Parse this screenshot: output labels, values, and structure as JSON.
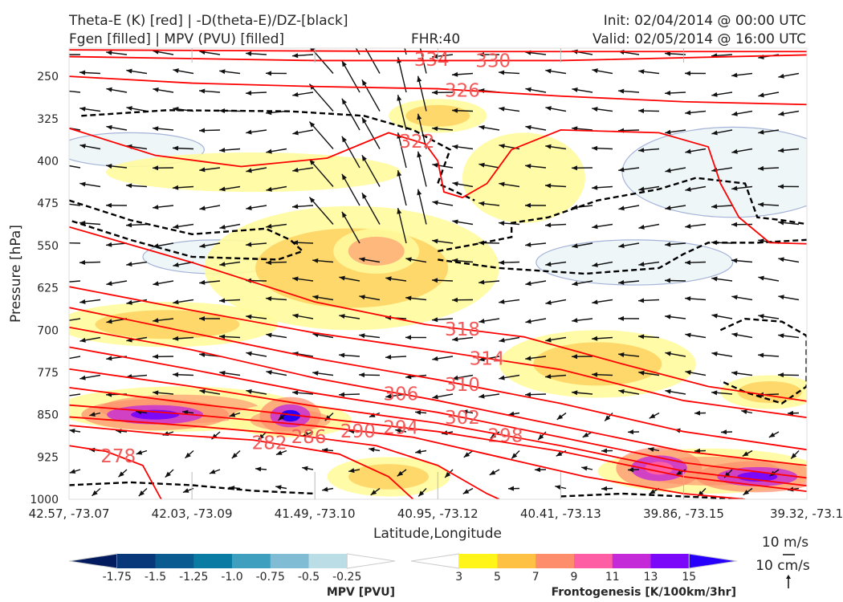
{
  "header": {
    "title_line1": "Theta-E (K) [red] | -D(theta-E)/DZ-[black]",
    "title_line2": "Fgen [filled] | MPV (PVU) [filled]",
    "fhr": "FHR:40",
    "init": "Init: 02/04/2014 @ 00:00 UTC",
    "valid": "Valid: 02/05/2014 @ 16:00 UTC"
  },
  "chart_data": {
    "type": "line",
    "xlabel": "Latitude,Longitude",
    "ylabel": "Pressure [hPa]",
    "x_ticks": [
      "42.57, -73.07",
      "42.03, -73.09",
      "41.49, -73.10",
      "40.95, -73.12",
      "40.41, -73.13",
      "39.86, -73.15",
      "39.32, -73.1"
    ],
    "y_ticks": [
      250,
      325,
      400,
      475,
      550,
      625,
      700,
      775,
      850,
      925,
      1000
    ],
    "ylim": [
      1000,
      200
    ],
    "theta_e_color": "#ff0000",
    "theta_e_contours": [
      {
        "level": "334",
        "label_at": [
          2.95,
          203
        ],
        "points": [
          [
            0,
            203
          ],
          [
            3,
            206
          ],
          [
            6,
            206
          ]
        ]
      },
      {
        "level": "330",
        "label_at": [
          2.95,
          218
        ],
        "points": [
          [
            0,
            215
          ],
          [
            2,
            222
          ],
          [
            4,
            222
          ],
          [
            6,
            212
          ]
        ]
      },
      {
        "level": "326",
        "label_at": [
          3.2,
          270
        ],
        "points": [
          [
            0,
            250
          ],
          [
            1,
            262
          ],
          [
            2,
            268
          ],
          [
            3,
            272
          ],
          [
            4,
            285
          ],
          [
            5,
            295
          ],
          [
            6,
            300
          ]
        ]
      },
      {
        "level": "322",
        "label_at": [
          2.83,
          385
        ],
        "points": [
          [
            0,
            342
          ],
          [
            0.7,
            390
          ],
          [
            1.4,
            410
          ],
          [
            2.1,
            395
          ],
          [
            2.6,
            350
          ],
          [
            2.9,
            370
          ],
          [
            3.0,
            400
          ],
          [
            3.05,
            455
          ],
          [
            3.2,
            465
          ],
          [
            3.4,
            440
          ],
          [
            3.6,
            380
          ],
          [
            4.0,
            345
          ],
          [
            4.8,
            350
          ],
          [
            5.2,
            375
          ],
          [
            5.3,
            440
          ],
          [
            5.45,
            500
          ],
          [
            5.7,
            545
          ],
          [
            6,
            547
          ]
        ]
      },
      {
        "level": "318",
        "label_at": [
          3.2,
          693
        ],
        "points": [
          [
            0,
            517
          ],
          [
            1,
            580
          ],
          [
            2,
            650
          ],
          [
            2.9,
            690
          ],
          [
            3.7,
            712
          ],
          [
            4.5,
            760
          ],
          [
            5.2,
            800
          ],
          [
            6,
            826
          ]
        ]
      },
      {
        "level": "314",
        "label_at": [
          3.4,
          748
        ],
        "points": [
          [
            0,
            623
          ],
          [
            1,
            665
          ],
          [
            2,
            705
          ],
          [
            3.1,
            740
          ],
          [
            4,
            770
          ],
          [
            5,
            825
          ],
          [
            6,
            855
          ]
        ]
      },
      {
        "level": "310",
        "label_at": [
          3.2,
          790
        ],
        "points": [
          [
            0,
            660
          ],
          [
            1,
            705
          ],
          [
            2,
            750
          ],
          [
            3,
            788
          ],
          [
            4,
            830
          ],
          [
            5,
            880
          ],
          [
            6,
            912
          ]
        ]
      },
      {
        "level": "306",
        "label_at": [
          2.95,
          826
        ],
        "points": [
          [
            0,
            695
          ],
          [
            1,
            735
          ],
          [
            2,
            785
          ],
          [
            3,
            825
          ],
          [
            4,
            870
          ],
          [
            5,
            915
          ],
          [
            6,
            940
          ]
        ]
      },
      {
        "level": "302",
        "label_at": [
          3.2,
          848
        ],
        "points": [
          [
            0,
            730
          ],
          [
            1,
            770
          ],
          [
            2,
            812
          ],
          [
            3,
            846
          ],
          [
            4,
            890
          ],
          [
            5,
            935
          ],
          [
            6,
            962
          ]
        ]
      },
      {
        "level": "298",
        "label_at": [
          3.3,
          869
        ],
        "points": [
          [
            0,
            769
          ],
          [
            1,
            800
          ],
          [
            2,
            835
          ],
          [
            3,
            865
          ],
          [
            4,
            905
          ],
          [
            5,
            950
          ],
          [
            6,
            976
          ]
        ]
      },
      {
        "level": "294",
        "label_at": [
          2.95,
          883
        ],
        "points": [
          [
            0,
            802
          ],
          [
            1,
            830
          ],
          [
            2,
            855
          ],
          [
            3,
            880
          ],
          [
            4,
            915
          ],
          [
            5,
            960
          ],
          [
            6,
            986
          ]
        ]
      },
      {
        "level": "290",
        "label_at": [
          2.6,
          890
        ],
        "points": [
          [
            0,
            833
          ],
          [
            1,
            850
          ],
          [
            2,
            870
          ],
          [
            2.8,
            890
          ],
          [
            3.5,
            925
          ],
          [
            4.2,
            960
          ],
          [
            5,
            990
          ],
          [
            5.5,
            1000
          ]
        ]
      },
      {
        "level": "286",
        "label_at": [
          2.2,
          891
        ],
        "points": [
          [
            0,
            854
          ],
          [
            1,
            870
          ],
          [
            1.8,
            885
          ],
          [
            2.5,
            905
          ],
          [
            3.0,
            940
          ],
          [
            3.4,
            990
          ],
          [
            3.5,
            1000
          ]
        ]
      },
      {
        "level": "282",
        "label_at": [
          1.63,
          895
        ],
        "points": [
          [
            0,
            869
          ],
          [
            0.8,
            885
          ],
          [
            1.5,
            895
          ],
          [
            2.2,
            920
          ],
          [
            2.6,
            960
          ],
          [
            2.8,
            1000
          ]
        ]
      },
      {
        "level": "278",
        "label_at": [
          0.4,
          924
        ],
        "points": [
          [
            0,
            905
          ],
          [
            0.3,
            915
          ],
          [
            0.6,
            940
          ],
          [
            0.75,
            1000
          ]
        ]
      }
    ],
    "dtheta_dz_dashed": [
      [
        [
          0,
          470
        ],
        [
          0.5,
          505
        ],
        [
          1,
          530
        ],
        [
          1.3,
          525
        ],
        [
          1.6,
          520
        ],
        [
          1.8,
          540
        ],
        [
          1.9,
          560
        ],
        [
          1.7,
          575
        ],
        [
          1,
          570
        ],
        [
          0.5,
          540
        ],
        [
          0,
          505
        ]
      ],
      [
        [
          0.1,
          320
        ],
        [
          0.8,
          310
        ],
        [
          1.8,
          312
        ],
        [
          2.4,
          320
        ],
        [
          2.8,
          345
        ],
        [
          3.1,
          380
        ],
        [
          3.0,
          440
        ],
        [
          3.3,
          470
        ]
      ],
      [
        [
          3.0,
          560
        ],
        [
          3.3,
          548
        ],
        [
          3.6,
          535
        ],
        [
          3.6,
          510
        ],
        [
          3.9,
          500
        ],
        [
          4.3,
          470
        ],
        [
          4.8,
          450
        ],
        [
          5.1,
          430
        ],
        [
          5.5,
          440
        ],
        [
          5.6,
          500
        ],
        [
          5.8,
          505
        ],
        [
          6,
          512
        ]
      ],
      [
        [
          3.0,
          575
        ],
        [
          3.5,
          590
        ],
        [
          4.2,
          600
        ],
        [
          4.8,
          590
        ],
        [
          5.0,
          565
        ],
        [
          5.2,
          545
        ],
        [
          5.6,
          545
        ],
        [
          6,
          540
        ]
      ],
      [
        [
          5.3,
          700
        ],
        [
          5.5,
          680
        ],
        [
          5.8,
          685
        ],
        [
          6,
          710
        ],
        [
          6,
          800
        ],
        [
          5.8,
          830
        ],
        [
          5.5,
          810
        ],
        [
          5.3,
          790
        ]
      ],
      [
        [
          0,
          975
        ],
        [
          0.5,
          970
        ],
        [
          1,
          975
        ],
        [
          1.5,
          985
        ],
        [
          2,
          990
        ]
      ],
      [
        [
          4,
          995
        ],
        [
          4.5,
          990
        ],
        [
          5,
          995
        ],
        [
          5.5,
          1000
        ]
      ]
    ],
    "fgen_blobs": [
      {
        "x": 2.3,
        "p": 590,
        "rx": 1.2,
        "rp": 110,
        "value": 5
      },
      {
        "x": 2.5,
        "p": 560,
        "rx": 0.35,
        "rp": 40,
        "value": 7
      },
      {
        "x": 0.8,
        "p": 690,
        "rx": 0.9,
        "rp": 40,
        "value": 5
      },
      {
        "x": 1.5,
        "p": 420,
        "rx": 1.2,
        "rp": 35,
        "value": 3
      },
      {
        "x": 3.7,
        "p": 430,
        "rx": 0.5,
        "rp": 80,
        "value": 3
      },
      {
        "x": 3.0,
        "p": 320,
        "rx": 0.4,
        "rp": 30,
        "value": 5
      },
      {
        "x": 4.3,
        "p": 760,
        "rx": 0.8,
        "rp": 60,
        "value": 5
      },
      {
        "x": 5.7,
        "p": 810,
        "rx": 0.4,
        "rp": 30,
        "value": 5
      },
      {
        "x": 0.9,
        "p": 840,
        "rx": 1.0,
        "rp": 40,
        "value": 7
      },
      {
        "x": 1.8,
        "p": 860,
        "rx": 0.5,
        "rp": 30,
        "value": 7
      },
      {
        "x": 5.2,
        "p": 950,
        "rx": 0.9,
        "rp": 40,
        "value": 7
      },
      {
        "x": 2.6,
        "p": 960,
        "rx": 0.5,
        "rp": 35,
        "value": 5
      }
    ],
    "fgen_cores": [
      {
        "x": 0.7,
        "p": 850,
        "rx": 0.6,
        "rp": 15,
        "value": 13
      },
      {
        "x": 1.8,
        "p": 852,
        "rx": 0.25,
        "rp": 18,
        "value": 15
      },
      {
        "x": 5.6,
        "p": 960,
        "rx": 0.5,
        "rp": 15,
        "value": 13
      },
      {
        "x": 4.8,
        "p": 945,
        "rx": 0.35,
        "rp": 20,
        "value": 9
      }
    ],
    "mpv_blobs": [
      {
        "x": 0.5,
        "p": 380,
        "rx": 0.6,
        "rp": 30,
        "value": -0.25
      },
      {
        "x": 5.4,
        "p": 420,
        "rx": 0.9,
        "rp": 80,
        "value": -0.25
      },
      {
        "x": 4.6,
        "p": 580,
        "rx": 0.8,
        "rp": 40,
        "value": -0.25
      },
      {
        "x": 1.2,
        "p": 570,
        "rx": 0.6,
        "rp": 30,
        "value": -0.25
      }
    ]
  },
  "colorbars": {
    "mpv": {
      "label": "MPV [PVU]",
      "ticks": [
        "-1.75",
        "-1.5",
        "-1.25",
        "-1.0",
        "-0.75",
        "-0.5",
        "-0.25"
      ],
      "colors": [
        "#021b5e",
        "#08387a",
        "#0a5b8f",
        "#0a7ba3",
        "#3ea0be",
        "#80bcd4",
        "#bbdde6",
        "#ffffff"
      ]
    },
    "fgen": {
      "label": "Frontogenesis [K/100km/3hr]",
      "ticks": [
        "3",
        "5",
        "7",
        "9",
        "11",
        "13",
        "15"
      ],
      "colors": [
        "#ffffff",
        "#fff519",
        "#fec143",
        "#fe8d6b",
        "#fe5fa4",
        "#c42ad8",
        "#7b08f8",
        "#2600fb"
      ]
    }
  },
  "vector_key": {
    "horizontal": "10 m/s",
    "vertical": "10 cm/s"
  }
}
